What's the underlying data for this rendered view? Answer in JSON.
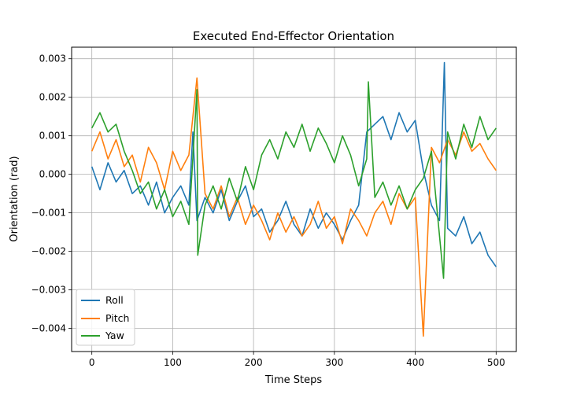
{
  "chart_data": {
    "type": "line",
    "title": "Executed End-Effector Orientation",
    "xlabel": "Time Steps",
    "ylabel": "Orientation (rad)",
    "xlim": [
      -25,
      525
    ],
    "ylim": [
      -0.0046,
      0.0033
    ],
    "xticks": [
      0,
      100,
      200,
      300,
      400,
      500
    ],
    "xtick_labels": [
      "0",
      "100",
      "200",
      "300",
      "400",
      "500"
    ],
    "yticks": [
      -0.004,
      -0.003,
      -0.002,
      -0.001,
      0.0,
      0.001,
      0.002,
      0.003
    ],
    "ytick_labels": [
      "−0.004",
      "−0.003",
      "−0.002",
      "−0.001",
      "0.000",
      "0.001",
      "0.002",
      "0.003"
    ],
    "grid": true,
    "legend_position": "lower-left",
    "series": [
      {
        "name": "Roll",
        "color": "#1f77b4",
        "x": [
          0,
          10,
          20,
          30,
          40,
          50,
          60,
          70,
          80,
          90,
          100,
          110,
          120,
          125,
          130,
          140,
          150,
          160,
          170,
          180,
          190,
          200,
          210,
          220,
          230,
          240,
          250,
          260,
          270,
          280,
          290,
          300,
          310,
          320,
          330,
          340,
          350,
          360,
          370,
          380,
          390,
          400,
          410,
          420,
          430,
          436,
          440,
          450,
          460,
          470,
          480,
          490,
          500
        ],
        "y": [
          0.0002,
          -0.0004,
          0.0003,
          -0.0002,
          0.0001,
          -0.0005,
          -0.0003,
          -0.0008,
          -0.0002,
          -0.001,
          -0.0006,
          -0.0003,
          -0.0008,
          0.0011,
          -0.0012,
          -0.0006,
          -0.001,
          -0.0004,
          -0.0012,
          -0.0007,
          -0.0003,
          -0.0011,
          -0.0009,
          -0.0015,
          -0.0012,
          -0.0007,
          -0.0013,
          -0.0016,
          -0.0009,
          -0.0014,
          -0.001,
          -0.0013,
          -0.0017,
          -0.0012,
          -0.0008,
          0.0011,
          0.0013,
          0.0015,
          0.0009,
          0.0016,
          0.0011,
          0.0014,
          0.0001,
          -0.0008,
          -0.0012,
          0.0029,
          -0.0014,
          -0.0016,
          -0.0011,
          -0.0018,
          -0.0015,
          -0.0021,
          -0.0024
        ]
      },
      {
        "name": "Pitch",
        "color": "#ff7f0e",
        "x": [
          0,
          10,
          20,
          30,
          40,
          50,
          60,
          70,
          80,
          90,
          100,
          110,
          120,
          130,
          140,
          150,
          160,
          170,
          180,
          190,
          200,
          210,
          220,
          230,
          240,
          250,
          260,
          270,
          280,
          290,
          300,
          310,
          320,
          330,
          340,
          350,
          360,
          370,
          380,
          390,
          400,
          410,
          420,
          430,
          440,
          450,
          460,
          470,
          480,
          490,
          500
        ],
        "y": [
          0.0006,
          0.0011,
          0.0004,
          0.0009,
          0.0002,
          0.0005,
          -0.0002,
          0.0007,
          0.0003,
          -0.0004,
          0.0006,
          0.0001,
          0.0005,
          0.0025,
          -0.0005,
          -0.0009,
          -0.0003,
          -0.0011,
          -0.0006,
          -0.0013,
          -0.0008,
          -0.0012,
          -0.0017,
          -0.001,
          -0.0015,
          -0.0011,
          -0.0016,
          -0.0013,
          -0.0007,
          -0.0014,
          -0.0011,
          -0.0018,
          -0.0009,
          -0.0012,
          -0.0016,
          -0.001,
          -0.0007,
          -0.0013,
          -0.0005,
          -0.0009,
          -0.0006,
          -0.0042,
          0.0007,
          0.0003,
          0.0009,
          0.0005,
          0.0011,
          0.0006,
          0.0008,
          0.0004,
          0.0001
        ]
      },
      {
        "name": "Yaw",
        "color": "#2ca02c",
        "x": [
          0,
          10,
          20,
          30,
          40,
          50,
          60,
          70,
          80,
          90,
          100,
          110,
          120,
          130,
          131,
          140,
          150,
          160,
          170,
          180,
          190,
          200,
          210,
          220,
          230,
          240,
          250,
          260,
          270,
          280,
          290,
          300,
          310,
          320,
          330,
          340,
          342,
          350,
          360,
          370,
          380,
          390,
          400,
          410,
          420,
          435,
          440,
          450,
          460,
          470,
          480,
          490,
          500
        ],
        "y": [
          0.0012,
          0.0016,
          0.0011,
          0.0013,
          0.0006,
          0.0001,
          -0.0005,
          -0.0002,
          -0.0009,
          -0.0004,
          -0.0011,
          -0.0007,
          -0.0013,
          0.0022,
          -0.0021,
          -0.0008,
          -0.0003,
          -0.0009,
          -0.0001,
          -0.0007,
          0.0002,
          -0.0004,
          0.0005,
          0.0009,
          0.0004,
          0.0011,
          0.0007,
          0.0013,
          0.0006,
          0.0012,
          0.0008,
          0.0003,
          0.001,
          0.0005,
          -0.0003,
          0.0004,
          0.0024,
          -0.0006,
          -0.0002,
          -0.0008,
          -0.0003,
          -0.0009,
          -0.0004,
          -0.0001,
          0.0006,
          -0.0027,
          0.0011,
          0.0004,
          0.0013,
          0.0007,
          0.0015,
          0.0009,
          0.0012
        ]
      }
    ]
  }
}
